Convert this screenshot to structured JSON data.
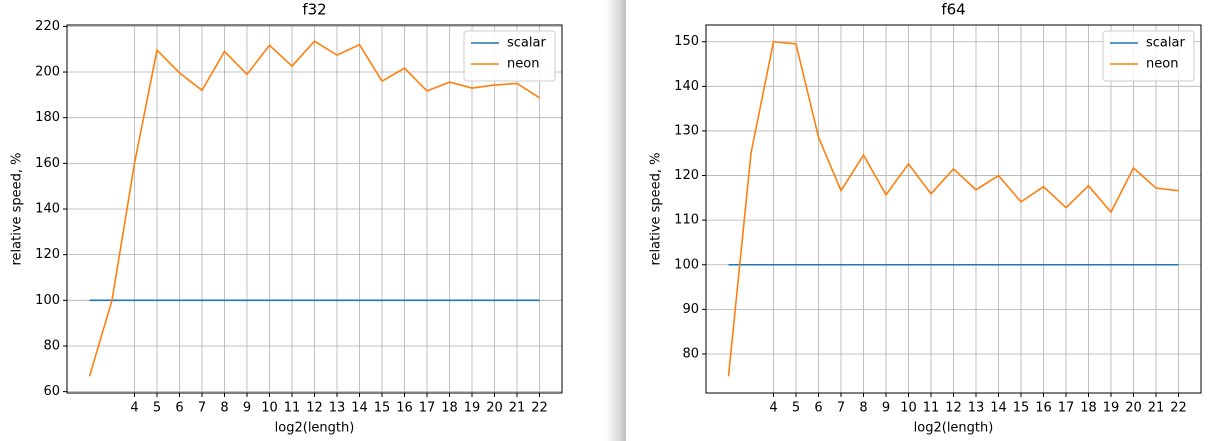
{
  "chart_data": [
    {
      "type": "line",
      "title": "f32",
      "xlabel": "log2(length)",
      "ylabel": "relative speed, %",
      "x": [
        2,
        3,
        4,
        5,
        6,
        7,
        8,
        9,
        10,
        11,
        12,
        13,
        14,
        15,
        16,
        17,
        18,
        19,
        20,
        21,
        22
      ],
      "xlim": [
        1,
        23
      ],
      "xticks": [
        4,
        5,
        6,
        7,
        8,
        9,
        10,
        11,
        12,
        13,
        14,
        15,
        16,
        17,
        18,
        19,
        20,
        21,
        22
      ],
      "ylim": [
        59.4,
        220.6
      ],
      "yticks": [
        60,
        80,
        100,
        120,
        140,
        160,
        180,
        200,
        220
      ],
      "grid": true,
      "legend": "upper right",
      "series": [
        {
          "name": "scalar",
          "color": "#1f77b4",
          "values": [
            100,
            100,
            100,
            100,
            100,
            100,
            100,
            100,
            100,
            100,
            100,
            100,
            100,
            100,
            100,
            100,
            100,
            100,
            100,
            100,
            100
          ]
        },
        {
          "name": "neon",
          "color": "#ff7f0e",
          "values": [
            66.7,
            100,
            160,
            209.6,
            199.6,
            192,
            209,
            199,
            211.7,
            202.6,
            213.5,
            207.4,
            212,
            196,
            201.7,
            191.7,
            195.6,
            193,
            194.3,
            195,
            188.7
          ]
        }
      ]
    },
    {
      "type": "line",
      "title": "f64",
      "xlabel": "log2(length)",
      "ylabel": "relative speed, %",
      "x": [
        2,
        3,
        4,
        5,
        6,
        7,
        8,
        9,
        10,
        11,
        12,
        13,
        14,
        15,
        16,
        17,
        18,
        19,
        20,
        21,
        22
      ],
      "xlim": [
        1,
        23
      ],
      "xticks": [
        4,
        5,
        6,
        7,
        8,
        9,
        10,
        11,
        12,
        13,
        14,
        15,
        16,
        17,
        18,
        19,
        20,
        21,
        22
      ],
      "ylim": [
        71.25,
        153.75
      ],
      "yticks": [
        80,
        90,
        100,
        110,
        120,
        130,
        140,
        150
      ],
      "grid": true,
      "legend": "upper right",
      "series": [
        {
          "name": "scalar",
          "color": "#1f77b4",
          "values": [
            100,
            100,
            100,
            100,
            100,
            100,
            100,
            100,
            100,
            100,
            100,
            100,
            100,
            100,
            100,
            100,
            100,
            100,
            100,
            100,
            100
          ]
        },
        {
          "name": "neon",
          "color": "#ff7f0e",
          "values": [
            75,
            125,
            150,
            149.5,
            128.6,
            116.6,
            124.6,
            115.7,
            122.6,
            115.9,
            121.5,
            116.8,
            120,
            114.1,
            117.5,
            112.8,
            117.7,
            111.8,
            121.7,
            117.2,
            116.6
          ]
        }
      ]
    }
  ]
}
